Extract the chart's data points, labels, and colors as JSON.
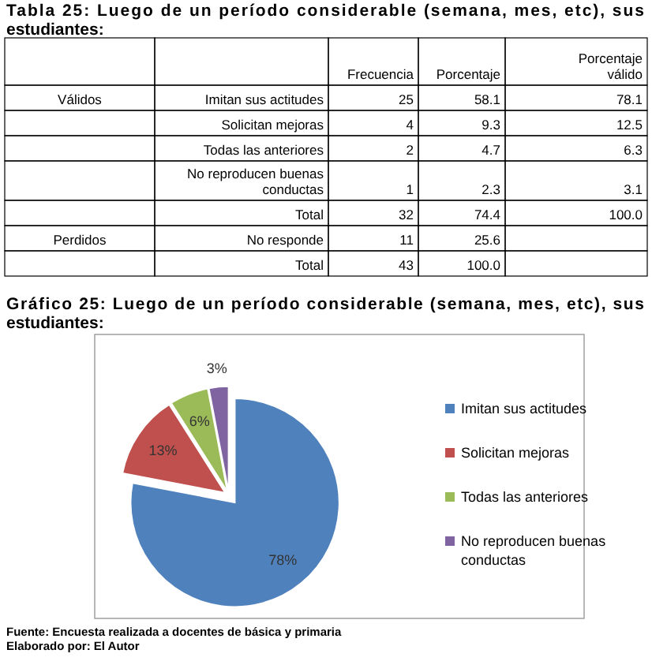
{
  "chart_data": [
    {
      "type": "other",
      "title": "Tabla 25: Luego de un período considerable (semana, mes, etc), sus estudiantes:",
      "annotations": [
        null,
        null,
        "Frecuencia",
        "Porcentaje",
        "Porcentaje válido",
        "Válidos",
        "Imitan sus actitudes",
        "25",
        "58.1",
        "78.1",
        null,
        "Solicitan mejoras",
        "4",
        "9.3",
        "12.5",
        null,
        "Todas las anteriores",
        "2",
        "4.7",
        "6.3",
        null,
        "No reproducen buenas conductas",
        "1",
        "2.3",
        "3.1",
        null,
        "Total",
        "32",
        "74.4",
        "100.0",
        "Perdidos",
        "No responde",
        "11",
        "25.6",
        null,
        null,
        "Total",
        "43",
        "100.0",
        null
      ]
    },
    {
      "type": "pie",
      "title": "Gráfico 25: Luego de un período considerable (semana, mes, etc), sus estudiantes:",
      "categories": [
        "Imitan sus actitudes",
        "Solicitan mejoras",
        "Todas las anteriores",
        "No reproducen buenas conductas"
      ],
      "values": [
        78,
        13,
        6,
        3
      ],
      "colors": [
        "#4f81bd",
        "#c0504d",
        "#9bbb59",
        "#8064a2"
      ],
      "value_labels": [
        "78%",
        "13%",
        "6%",
        "3%"
      ],
      "legend": "right",
      "annotations": [
        "Fuente: Encuesta realizada a docentes de básica y primaria",
        "Elaborado por: El Autor"
      ]
    }
  ]
}
